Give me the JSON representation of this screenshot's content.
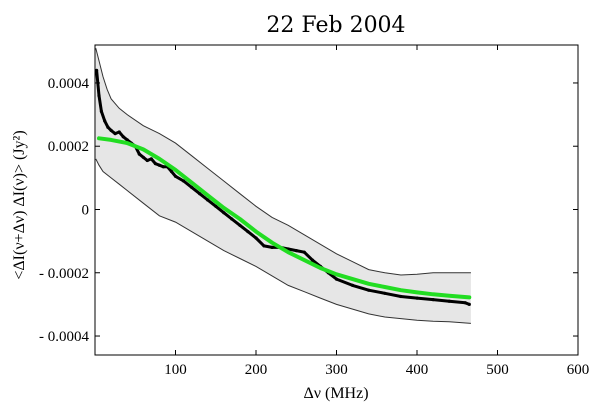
{
  "chart_data": {
    "type": "line",
    "title": "22 Feb 2004",
    "xlabel": "Δν (MHz)",
    "ylabel": "<ΔI(ν+Δν) ΔI(ν)> (Jy²)",
    "xlim": [
      0,
      600
    ],
    "ylim": [
      -0.00046,
      0.00052
    ],
    "x_ticks": [
      100,
      200,
      300,
      400,
      500,
      600
    ],
    "x_tick_labels": [
      "100",
      "200",
      "300",
      "400",
      "500",
      "600"
    ],
    "y_ticks": [
      -0.0004,
      -0.0002,
      0,
      0.0002,
      0.0004
    ],
    "y_tick_labels": [
      "- 0.0004",
      "- 0.0002",
      "0",
      "0.0002",
      "0.0004"
    ],
    "grid": false,
    "colors": {
      "measured": "#000000",
      "model": "#22dd22",
      "band_fill": "#e6e6e6",
      "band_edge": "#333333"
    },
    "series": [
      {
        "role": "measured",
        "x": [
          2,
          5,
          8,
          12,
          16,
          20,
          25,
          30,
          35,
          40,
          45,
          50,
          55,
          60,
          65,
          70,
          75,
          80,
          85,
          90,
          95,
          100,
          110,
          120,
          130,
          140,
          150,
          160,
          170,
          180,
          190,
          200,
          210,
          220,
          230,
          240,
          250,
          260,
          270,
          280,
          290,
          300,
          320,
          340,
          360,
          380,
          400,
          420,
          440,
          460,
          465
        ],
        "y": [
          0.00044,
          0.00036,
          0.00031,
          0.00028,
          0.00026,
          0.00025,
          0.00024,
          0.000245,
          0.00023,
          0.00022,
          0.00021,
          0.0002,
          0.000175,
          0.000165,
          0.000155,
          0.00016,
          0.000145,
          0.00014,
          0.000135,
          0.000135,
          0.00012,
          0.000105,
          9e-05,
          7e-05,
          5e-05,
          3e-05,
          1e-05,
          -1e-05,
          -3e-05,
          -5e-05,
          -7e-05,
          -9e-05,
          -0.000115,
          -0.00012,
          -0.00012,
          -0.000125,
          -0.00013,
          -0.000135,
          -0.00016,
          -0.00018,
          -0.0002,
          -0.00022,
          -0.00024,
          -0.000255,
          -0.000265,
          -0.000275,
          -0.00028,
          -0.000285,
          -0.00029,
          -0.000295,
          -0.0003
        ]
      },
      {
        "role": "model",
        "x": [
          5,
          20,
          40,
          60,
          80,
          100,
          120,
          140,
          160,
          180,
          200,
          220,
          240,
          260,
          280,
          300,
          320,
          340,
          360,
          380,
          400,
          420,
          440,
          465
        ],
        "y": [
          0.000225,
          0.00022,
          0.00021,
          0.00019,
          0.00016,
          0.000125,
          8.5e-05,
          4.5e-05,
          5e-06,
          -3e-05,
          -7e-05,
          -0.000105,
          -0.000135,
          -0.00016,
          -0.000185,
          -0.000205,
          -0.00022,
          -0.000235,
          -0.000245,
          -0.000255,
          -0.000262,
          -0.000268,
          -0.000273,
          -0.000278
        ]
      },
      {
        "role": "band_upper",
        "x": [
          1,
          5,
          10,
          15,
          20,
          30,
          40,
          60,
          80,
          100,
          120,
          140,
          160,
          180,
          200,
          220,
          240,
          260,
          280,
          300,
          320,
          340,
          360,
          380,
          400,
          420,
          440,
          467
        ],
        "y": [
          0.00051,
          0.00047,
          0.00042,
          0.00038,
          0.00035,
          0.00032,
          0.0003,
          0.000265,
          0.00024,
          0.00021,
          0.00017,
          0.00013,
          9e-05,
          5e-05,
          1e-05,
          -2.5e-05,
          -5e-05,
          -8e-05,
          -0.00011,
          -0.00014,
          -0.000165,
          -0.00019,
          -0.0002,
          -0.000207,
          -0.000205,
          -0.0002,
          -0.0002,
          -0.0002
        ]
      },
      {
        "role": "band_lower",
        "x": [
          1,
          5,
          10,
          20,
          30,
          40,
          60,
          80,
          100,
          120,
          140,
          160,
          180,
          200,
          220,
          240,
          260,
          280,
          300,
          320,
          340,
          360,
          380,
          400,
          420,
          440,
          467
        ],
        "y": [
          0.00016,
          0.00014,
          0.00012,
          0.0001,
          8e-05,
          6e-05,
          2e-05,
          -2e-05,
          -4e-05,
          -7e-05,
          -0.0001,
          -0.00013,
          -0.000155,
          -0.00018,
          -0.00021,
          -0.00024,
          -0.00026,
          -0.00028,
          -0.0003,
          -0.000315,
          -0.00033,
          -0.00034,
          -0.000345,
          -0.00035,
          -0.000353,
          -0.000355,
          -0.00036
        ]
      }
    ]
  }
}
